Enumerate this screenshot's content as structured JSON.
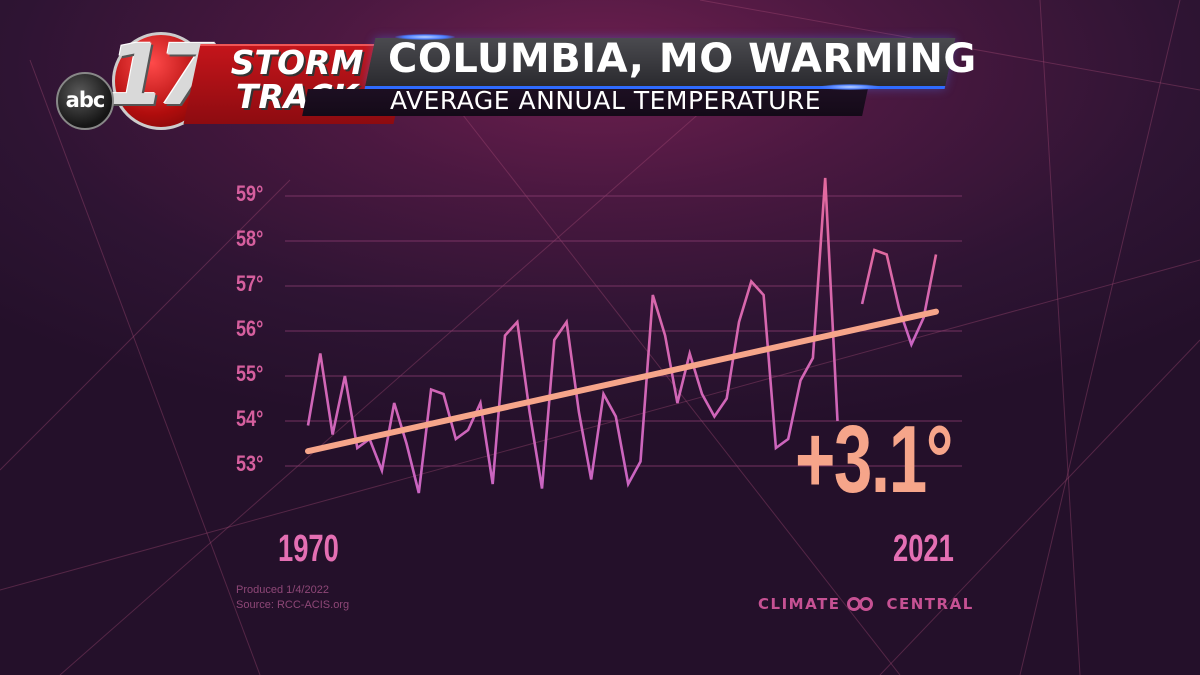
{
  "header": {
    "network_logo": "abc",
    "station_number": "17",
    "brand_line1": "STORM",
    "brand_line2": "TRACK",
    "title": "COLUMBIA, MO WARMING",
    "subtitle": "AVERAGE ANNUAL TEMPERATURE"
  },
  "footer": {
    "produced": "Produced 1/4/2022",
    "source": "Source: RCC-ACIS.org",
    "brand": "CLIMATE",
    "brand2": "CENTRAL",
    "brand_icon": "climate-central-rings-icon"
  },
  "colors": {
    "data_line": "#c964c2",
    "data_line_late": "#e2699e",
    "trend_line": "#f6a58a",
    "axis_label": "#d65f9e",
    "gridline": "#8e3d73"
  },
  "chart_data": {
    "type": "line",
    "title": "COLUMBIA, MO WARMING",
    "subtitle": "AVERAGE ANNUAL TEMPERATURE",
    "xlabel": "",
    "ylabel": "",
    "xlim": [
      1970,
      2021
    ],
    "ylim": [
      52.3,
      59.5
    ],
    "y_ticks": [
      53,
      54,
      55,
      56,
      57,
      58,
      59
    ],
    "y_tick_labels": [
      "53°",
      "54°",
      "55°",
      "56°",
      "57°",
      "58°",
      "59°"
    ],
    "x_tick_labels": [
      "1970",
      "2021"
    ],
    "grid": true,
    "annotation": "+3.1°",
    "series": [
      {
        "name": "Average annual temperature (°F)",
        "x": [
          1970,
          1971,
          1972,
          1973,
          1974,
          1975,
          1976,
          1977,
          1978,
          1979,
          1980,
          1981,
          1982,
          1983,
          1984,
          1985,
          1986,
          1987,
          1988,
          1989,
          1990,
          1991,
          1992,
          1993,
          1994,
          1995,
          1996,
          1997,
          1998,
          1999,
          2000,
          2001,
          2002,
          2003,
          2004,
          2005,
          2006,
          2007,
          2008,
          2009,
          2010,
          2011,
          2012,
          2013,
          2014,
          2015,
          2016,
          2017,
          2018,
          2019,
          2020,
          2021
        ],
        "values": [
          53.9,
          55.5,
          53.7,
          55.0,
          53.4,
          53.6,
          52.9,
          54.4,
          53.5,
          52.4,
          54.7,
          54.6,
          53.6,
          53.8,
          54.4,
          52.6,
          55.9,
          56.2,
          54.2,
          52.5,
          55.8,
          56.2,
          54.2,
          52.7,
          54.6,
          54.1,
          52.6,
          53.1,
          56.8,
          55.9,
          54.4,
          55.5,
          54.6,
          54.1,
          54.5,
          56.2,
          57.1,
          56.8,
          53.4,
          53.6,
          54.9,
          55.4,
          59.4,
          54.0,
          null,
          56.6,
          57.8,
          57.7,
          56.5,
          55.7,
          56.3,
          57.7
        ]
      },
      {
        "name": "Trend",
        "x": [
          1970,
          2021
        ],
        "values": [
          53.33,
          56.43
        ]
      }
    ]
  }
}
